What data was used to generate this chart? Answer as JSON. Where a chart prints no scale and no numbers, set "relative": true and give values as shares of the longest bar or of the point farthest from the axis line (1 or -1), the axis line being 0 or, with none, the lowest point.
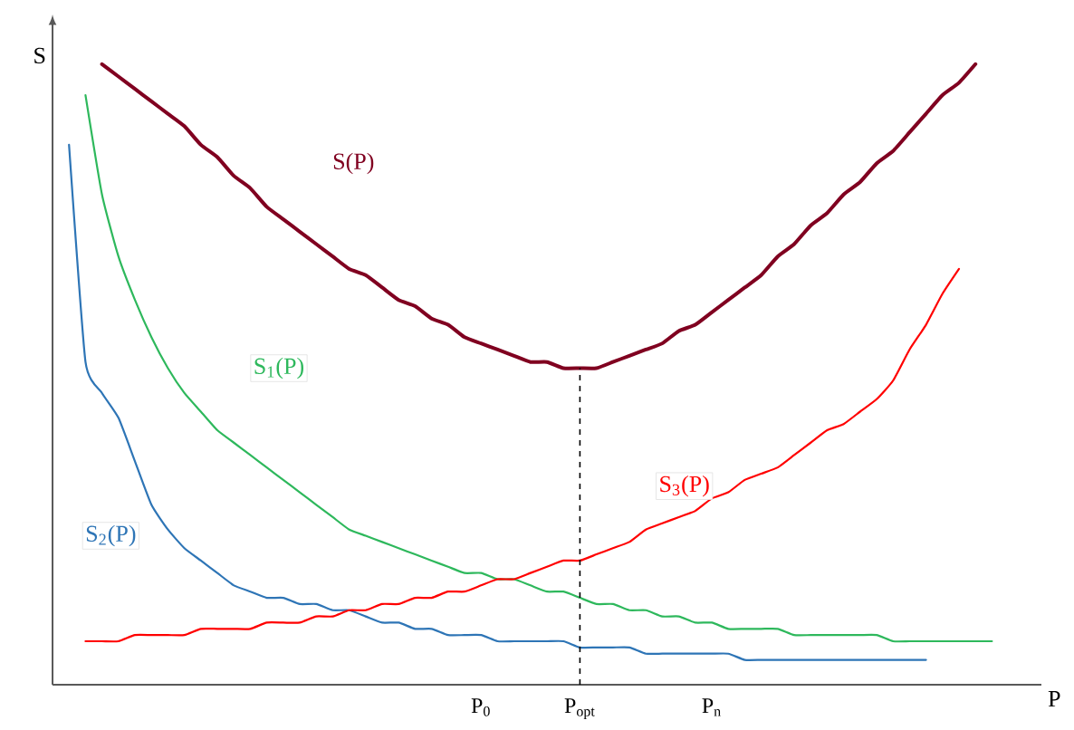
{
  "chart_data": {
    "type": "line",
    "relative": true,
    "xlabel": "P",
    "ylabel": "S",
    "categories": [
      null,
      null,
      null,
      null,
      null,
      null,
      null,
      null,
      null,
      null,
      null,
      null,
      null,
      null,
      null,
      null,
      null,
      null,
      null,
      null,
      null,
      null,
      null,
      null,
      null,
      null,
      "P$_{0}$",
      null,
      null,
      null,
      null,
      null,
      "P$_{opt}$",
      null,
      null,
      null,
      null,
      null,
      null,
      null,
      "P$_{n}$",
      null,
      null,
      null,
      null,
      null,
      null,
      null,
      null,
      null,
      null,
      null,
      null,
      null,
      null,
      null,
      null,
      null,
      null,
      null,
      null
    ],
    "series": [
      {
        "name": "S(P)",
        "color": "#800020",
        "values": [
          null,
          null,
          null,
          1.0,
          0.98,
          0.96,
          0.94,
          0.92,
          0.9,
          0.87,
          0.85,
          0.82,
          0.8,
          0.77,
          0.75,
          0.73,
          0.71,
          0.69,
          0.67,
          0.66,
          0.64,
          0.62,
          0.61,
          0.59,
          0.58,
          0.56,
          0.55,
          0.54,
          0.53,
          0.52,
          0.52,
          0.51,
          0.51,
          0.51,
          0.52,
          0.53,
          0.54,
          0.55,
          0.57,
          0.58,
          0.6,
          0.62,
          0.64,
          0.66,
          0.69,
          0.71,
          0.74,
          0.76,
          0.79,
          0.81,
          0.84,
          0.86,
          0.89,
          0.92,
          0.95,
          0.97,
          1.0,
          null,
          null,
          null,
          null
        ]
      },
      {
        "name": "S$_{1}$(P)",
        "color": "#2eb85c",
        "values": [
          null,
          null,
          0.95,
          0.79,
          0.69,
          0.62,
          0.56,
          0.51,
          0.47,
          0.44,
          0.41,
          0.39,
          0.37,
          0.35,
          0.33,
          0.31,
          0.29,
          0.27,
          0.25,
          0.24,
          0.23,
          0.22,
          0.21,
          0.2,
          0.19,
          0.18,
          0.18,
          0.17,
          0.17,
          0.16,
          0.15,
          0.15,
          0.14,
          0.13,
          0.13,
          0.12,
          0.12,
          0.11,
          0.11,
          0.1,
          0.1,
          0.09,
          0.09,
          0.09,
          0.09,
          0.08,
          0.08,
          0.08,
          0.08,
          0.08,
          0.08,
          0.07,
          0.07,
          0.07,
          0.07,
          0.07,
          0.07,
          0.07,
          null,
          null,
          null
        ]
      },
      {
        "name": "S$_{2}$(P)",
        "color": "#2e75b6",
        "values": [
          null,
          0.87,
          0.52,
          0.47,
          0.43,
          0.36,
          0.29,
          0.25,
          0.22,
          0.2,
          0.18,
          0.16,
          0.15,
          0.14,
          0.14,
          0.13,
          0.13,
          0.12,
          0.12,
          0.11,
          0.1,
          0.1,
          0.09,
          0.09,
          0.08,
          0.08,
          0.08,
          0.07,
          0.07,
          0.07,
          0.07,
          0.07,
          0.06,
          0.06,
          0.06,
          0.06,
          0.05,
          0.05,
          0.05,
          0.05,
          0.05,
          0.05,
          0.04,
          0.04,
          0.04,
          0.04,
          0.04,
          0.04,
          0.04,
          0.04,
          0.04,
          0.04,
          0.04,
          0.04,
          null,
          null,
          null,
          null,
          null,
          null,
          null
        ]
      },
      {
        "name": "S$_{3}$(P)",
        "color": "#ff0000",
        "values": [
          null,
          null,
          0.07,
          0.07,
          0.07,
          0.08,
          0.08,
          0.08,
          0.08,
          0.09,
          0.09,
          0.09,
          0.09,
          0.1,
          0.1,
          0.1,
          0.11,
          0.11,
          0.12,
          0.12,
          0.13,
          0.13,
          0.14,
          0.14,
          0.15,
          0.15,
          0.16,
          0.17,
          0.17,
          0.18,
          0.19,
          0.2,
          0.2,
          0.21,
          0.22,
          0.23,
          0.25,
          0.26,
          0.27,
          0.28,
          0.3,
          0.31,
          0.33,
          0.34,
          0.35,
          0.37,
          0.39,
          0.41,
          0.42,
          0.44,
          0.46,
          0.49,
          0.54,
          0.58,
          0.63,
          0.67,
          null,
          null,
          null,
          null,
          null
        ]
      }
    ],
    "ref_lines": [
      {
        "axis": "x",
        "value": "P$_{opt}$",
        "line_style": "dashed",
        "color": "#000000"
      }
    ],
    "grid": false,
    "line_style": "solid",
    "marker": "none"
  }
}
